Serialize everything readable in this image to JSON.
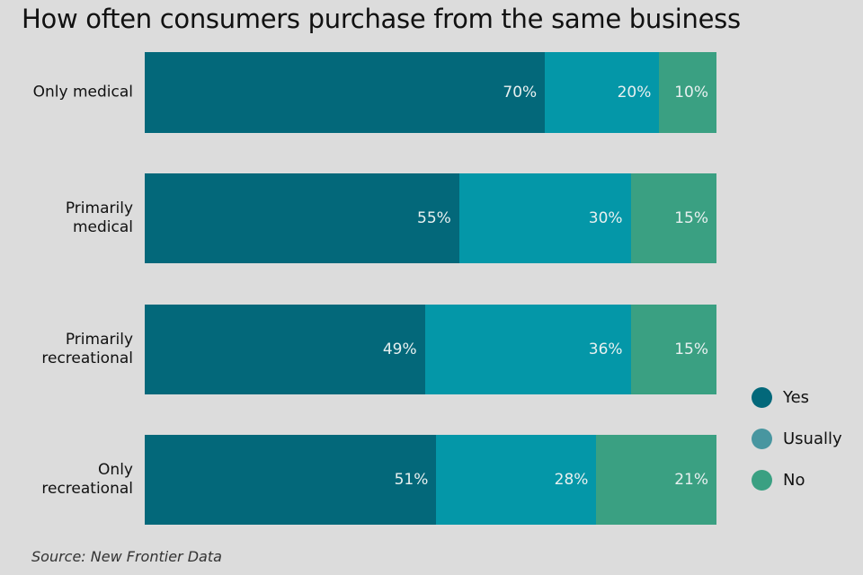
{
  "chart_data": {
    "type": "bar",
    "stacked": true,
    "orientation": "horizontal",
    "title": "How often consumers purchase from the same business",
    "categories": [
      "Only medical",
      "Primarily\nmedical",
      "Primarily\nrecreational",
      "Only\nrecreational"
    ],
    "series": [
      {
        "name": "Yes",
        "color": "#03687a",
        "values": [
          70,
          55,
          49,
          51
        ],
        "labels": [
          "70%",
          "55%",
          "49%",
          "51%"
        ]
      },
      {
        "name": "Usually",
        "color": "#0497a8",
        "values": [
          20,
          30,
          36,
          28
        ],
        "labels": [
          "20%",
          "30%",
          "36%",
          "28%"
        ]
      },
      {
        "name": "No",
        "color": "#3aa082",
        "values": [
          10,
          15,
          15,
          21
        ],
        "labels": [
          "10%",
          "15%",
          "15%",
          "21%"
        ]
      }
    ],
    "legend": {
      "placement": "right",
      "colors": [
        "#03687a",
        "#4896a0",
        "#3aa082"
      ]
    },
    "xlim": [
      0,
      100
    ],
    "xlabel": "",
    "ylabel": "",
    "source": "Source: New Frontier Data"
  }
}
